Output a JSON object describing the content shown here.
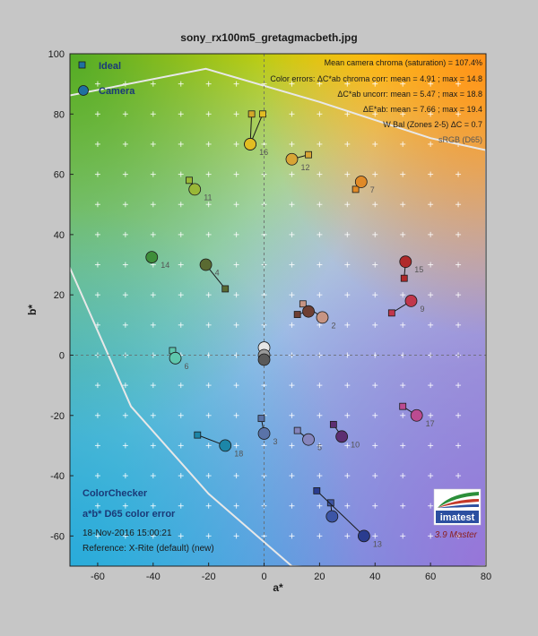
{
  "chart_data": {
    "type": "scatter",
    "title": "sony_rx100m5_gretagmacbeth.jpg",
    "xlabel": "a*",
    "ylabel": "b*",
    "xlim": [
      -70,
      80
    ],
    "ylim": [
      -70,
      100
    ],
    "xticks": [
      -60,
      -40,
      -20,
      0,
      20,
      40,
      60,
      80
    ],
    "yticks": [
      -60,
      -40,
      -20,
      0,
      20,
      40,
      60,
      80,
      100
    ],
    "xtick_labels": [
      "-60",
      "-40",
      "-20",
      "0",
      "20",
      "40",
      "60",
      "80"
    ],
    "ytick_labels": [
      "-60",
      "-40",
      "-20",
      "0",
      "20",
      "40",
      "60",
      "80",
      "100"
    ],
    "grid": true,
    "legend": {
      "position": "top-left",
      "ideal_label": "Ideal",
      "camera_label": "Camera"
    },
    "stats": [
      "Mean camera chroma (saturation) = 107.4%",
      "Color errors: ΔC*ab chroma corr:  mean = 4.91 ;  max = 14.8",
      "ΔC*ab uncorr:  mean = 5.47 ;  max = 18.8",
      "ΔE*ab:  mean = 7.66 ;  max = 19.4",
      "W Bal (Zones 2-5) ΔC = 0.7"
    ],
    "gamut_label": "sRGB (D65)",
    "gamut_boundary": [
      [
        -71,
        86
      ],
      [
        -21,
        95
      ],
      [
        20,
        84
      ],
      [
        60,
        72
      ],
      [
        80,
        68
      ],
      [
        80,
        -70
      ],
      [
        36,
        -71
      ],
      [
        10,
        -70
      ],
      [
        -20,
        -46
      ],
      [
        -48,
        -17
      ],
      [
        -71,
        31
      ]
    ],
    "patches": [
      {
        "id": "2",
        "ideal": [
          14,
          17
        ],
        "camera": [
          21,
          12.5
        ],
        "color": "#c79584"
      },
      {
        "id": "",
        "ideal": [
          12,
          13.5
        ],
        "camera": [
          16,
          14.5
        ],
        "color": "#6e3f33"
      },
      {
        "id": "3",
        "ideal": [
          -1,
          -21
        ],
        "camera": [
          0,
          -26
        ],
        "color": "#5a73a8"
      },
      {
        "id": "4",
        "ideal": [
          -14,
          22
        ],
        "camera": [
          -21,
          30
        ],
        "color": "#5a6a32"
      },
      {
        "id": "5",
        "ideal": [
          12,
          -25
        ],
        "camera": [
          16,
          -28
        ],
        "color": "#8585bd"
      },
      {
        "id": "6",
        "ideal": [
          -33,
          1.5
        ],
        "camera": [
          -32,
          -1
        ],
        "color": "#5ec7ad"
      },
      {
        "id": "7",
        "ideal": [
          33,
          55
        ],
        "camera": [
          35,
          57.5
        ],
        "color": "#e08a28"
      },
      {
        "id": "",
        "ideal": [
          -4.5,
          80
        ],
        "camera": [
          -5,
          70
        ],
        "color": "#d4a828"
      },
      {
        "id": "",
        "ideal": [
          16,
          66.5
        ],
        "camera": [
          10,
          65
        ],
        "color": "#d8a535"
      },
      {
        "id": "",
        "ideal": [
          24,
          -49
        ],
        "camera": [
          24.5,
          -53.5
        ],
        "color": "#3c55a5"
      },
      {
        "id": "9",
        "ideal": [
          46,
          14
        ],
        "camera": [
          53,
          18
        ],
        "color": "#c1374c"
      },
      {
        "id": "10",
        "ideal": [
          25,
          -23
        ],
        "camera": [
          28,
          -27
        ],
        "color": "#5d2e71"
      },
      {
        "id": "11",
        "ideal": [
          -27,
          58
        ],
        "camera": [
          -25,
          55
        ],
        "color": "#99b837"
      },
      {
        "id": "12",
        "ideal": [
          16,
          66.5
        ],
        "camera": [
          10,
          65
        ],
        "color": "#d8a535"
      },
      {
        "id": "13",
        "ideal": [
          19,
          -45
        ],
        "camera": [
          36,
          -60
        ],
        "color": "#2a3c8f"
      },
      {
        "id": "14",
        "ideal": [
          -40.5,
          32
        ],
        "camera": [
          -40.5,
          32.5
        ],
        "color": "#3e8e3a"
      },
      {
        "id": "15",
        "ideal": [
          50.5,
          25.5
        ],
        "camera": [
          51,
          31
        ],
        "color": "#b02a2a"
      },
      {
        "id": "16",
        "ideal": [
          -0.5,
          80
        ],
        "camera": [
          -5,
          70
        ],
        "color": "#e2bd22"
      },
      {
        "id": "17",
        "ideal": [
          50,
          -17
        ],
        "camera": [
          55,
          -20
        ],
        "color": "#bb4b91"
      },
      {
        "id": "18",
        "ideal": [
          -24,
          -26.5
        ],
        "camera": [
          -14,
          -30
        ],
        "color": "#1c86a8"
      },
      {
        "id": "",
        "ideal": [
          0,
          2.5
        ],
        "camera": [
          0,
          2.5
        ],
        "color": "#e6e6e6"
      },
      {
        "id": "",
        "ideal": [
          0,
          -0.5
        ],
        "camera": [
          0,
          0
        ],
        "color": "#9a9a9a"
      },
      {
        "id": "",
        "ideal": [
          0,
          -1.5
        ],
        "camera": [
          0,
          -1.5
        ],
        "color": "#5a5a5a"
      }
    ],
    "label_offsets_note": ""
  },
  "panel": {
    "title": "ColorChecker",
    "subtitle": "a*b* D65 color error",
    "timestamp": "18-Nov-2016 15:00:21",
    "reference": "Reference: X-Rite (default) (new)"
  },
  "logo": {
    "text": "imatest",
    "version": "3.9  Master"
  }
}
